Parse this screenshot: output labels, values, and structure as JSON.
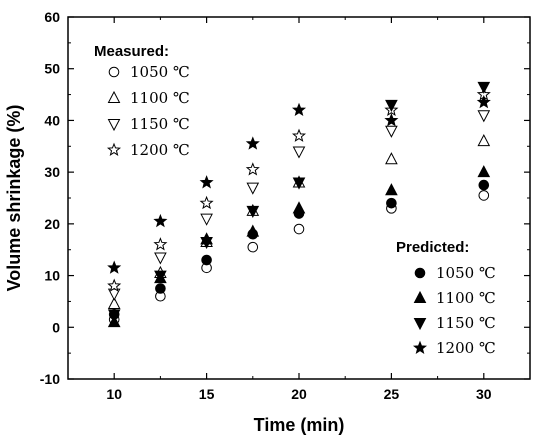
{
  "chart_data": {
    "type": "scatter",
    "xlabel": "Time (min)",
    "ylabel": "Volume shrinkage (%)",
    "xlim": [
      7.5,
      32.5
    ],
    "ylim": [
      -10,
      60
    ],
    "xticks": [
      10,
      15,
      20,
      25,
      30
    ],
    "yticks": [
      -10,
      0,
      10,
      20,
      30,
      40,
      50,
      60
    ],
    "grid": false,
    "x": [
      10,
      12.5,
      15,
      17.5,
      20,
      25,
      30
    ],
    "legends": [
      {
        "title": "Measured:",
        "placement": "top-left",
        "fill": "open"
      },
      {
        "title": "Predicted:",
        "placement": "bottom-right",
        "fill": "filled"
      }
    ],
    "series": [
      {
        "name": "1050 ℃",
        "group": "Measured",
        "marker": "circle",
        "fill": "open",
        "values": [
          1.5,
          6,
          11.5,
          15.5,
          19,
          23,
          25.5
        ]
      },
      {
        "name": "1100 ℃",
        "group": "Measured",
        "marker": "triangle-up",
        "fill": "open",
        "values": [
          4.5,
          10.5,
          16.5,
          22.5,
          28,
          32.5,
          36
        ]
      },
      {
        "name": "1150 ℃",
        "group": "Measured",
        "marker": "triangle-down",
        "fill": "open",
        "values": [
          6.5,
          13.5,
          21,
          27,
          34,
          38,
          41
        ]
      },
      {
        "name": "1200 ℃",
        "group": "Measured",
        "marker": "star",
        "fill": "open",
        "values": [
          8,
          16,
          24,
          30.5,
          37,
          42,
          45
        ]
      },
      {
        "name": "1050 ℃",
        "group": "Predicted",
        "marker": "circle",
        "fill": "filled",
        "values": [
          2.5,
          7.5,
          13,
          18,
          22,
          24,
          27.5
        ]
      },
      {
        "name": "1100 ℃",
        "group": "Predicted",
        "marker": "triangle-up",
        "fill": "filled",
        "values": [
          1,
          9.5,
          17,
          18.5,
          23,
          26.5,
          30
        ]
      },
      {
        "name": "1150 ℃",
        "group": "Predicted",
        "marker": "triangle-down",
        "fill": "filled",
        "values": [
          2.5,
          10,
          16.5,
          22.5,
          28,
          43,
          46.5
        ]
      },
      {
        "name": "1200 ℃",
        "group": "Predicted",
        "marker": "star",
        "fill": "filled",
        "values": [
          11.5,
          20.5,
          28,
          35.5,
          42,
          40,
          43.5
        ]
      }
    ]
  }
}
